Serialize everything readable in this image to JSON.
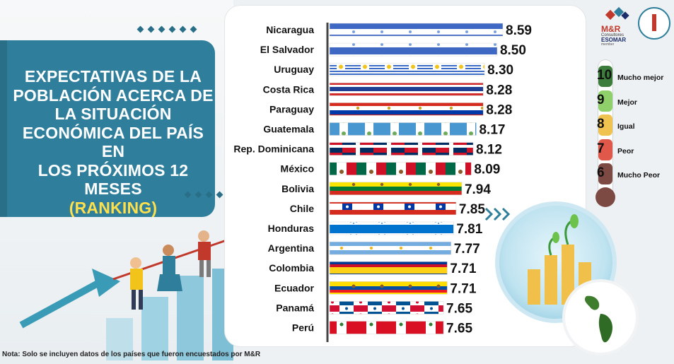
{
  "title": {
    "line1": "EXPECTATIVAS DE LA",
    "line2": "POBLACIÓN ACERCA DE",
    "line3": "LA SITUACIÓN",
    "line4": "ECONÓMICA DEL PAÍS EN",
    "line5": "LOS PRÓXIMOS 12 MESES",
    "ranking": "(RANKING)"
  },
  "note": "Nota: Solo se incluyen datos de los países que fueron encuestados por M&R",
  "logo": {
    "mr": "M&R",
    "consultores": "Consultores",
    "esomar": "ESOMAR",
    "member": "member"
  },
  "legend": [
    {
      "num": "10",
      "label": "Mucho mejor",
      "color": "#3c7d3b"
    },
    {
      "num": "9",
      "label": "Mejor",
      "color": "#8fd06b"
    },
    {
      "num": "8",
      "label": "Igual",
      "color": "#f0c24f"
    },
    {
      "num": "7",
      "label": "Peor",
      "color": "#e0584a"
    },
    {
      "num": "6",
      "label": "Mucho Peor",
      "color": "#7d4a43"
    }
  ],
  "chart_data": {
    "type": "bar",
    "orientation": "horizontal",
    "categories": [
      "Nicaragua",
      "El Salvador",
      "Uruguay",
      "Costa Rica",
      "Paraguay",
      "Guatemala",
      "Rep. Dominicana",
      "México",
      "Bolivia",
      "Chile",
      "Honduras",
      "Argentina",
      "Colombia",
      "Ecuador",
      "Panamá",
      "Perú"
    ],
    "values": [
      8.59,
      8.5,
      8.3,
      8.28,
      8.28,
      8.17,
      8.12,
      8.09,
      7.94,
      7.85,
      7.81,
      7.77,
      7.71,
      7.71,
      7.65,
      7.65
    ],
    "labels": [
      "8.59",
      "8.50",
      "8.30",
      "8.28",
      "8.28",
      "8.17",
      "8.12",
      "8.09",
      "7.94",
      "7.85",
      "7.81",
      "7.77",
      "7.71",
      "7.71",
      "7.65",
      "7.65"
    ],
    "flag_style": [
      "blue-white-blue",
      "blue-white-blue",
      "uruguay",
      "costa-rica",
      "paraguay",
      "guatemala",
      "dominican",
      "mexico",
      "bolivia",
      "chile",
      "honduras",
      "argentina",
      "colombia",
      "ecuador",
      "panama",
      "peru"
    ]
  },
  "colors": {
    "panel_accent": "#2f7f9c",
    "ranking_yellow": "#ffe04a"
  }
}
